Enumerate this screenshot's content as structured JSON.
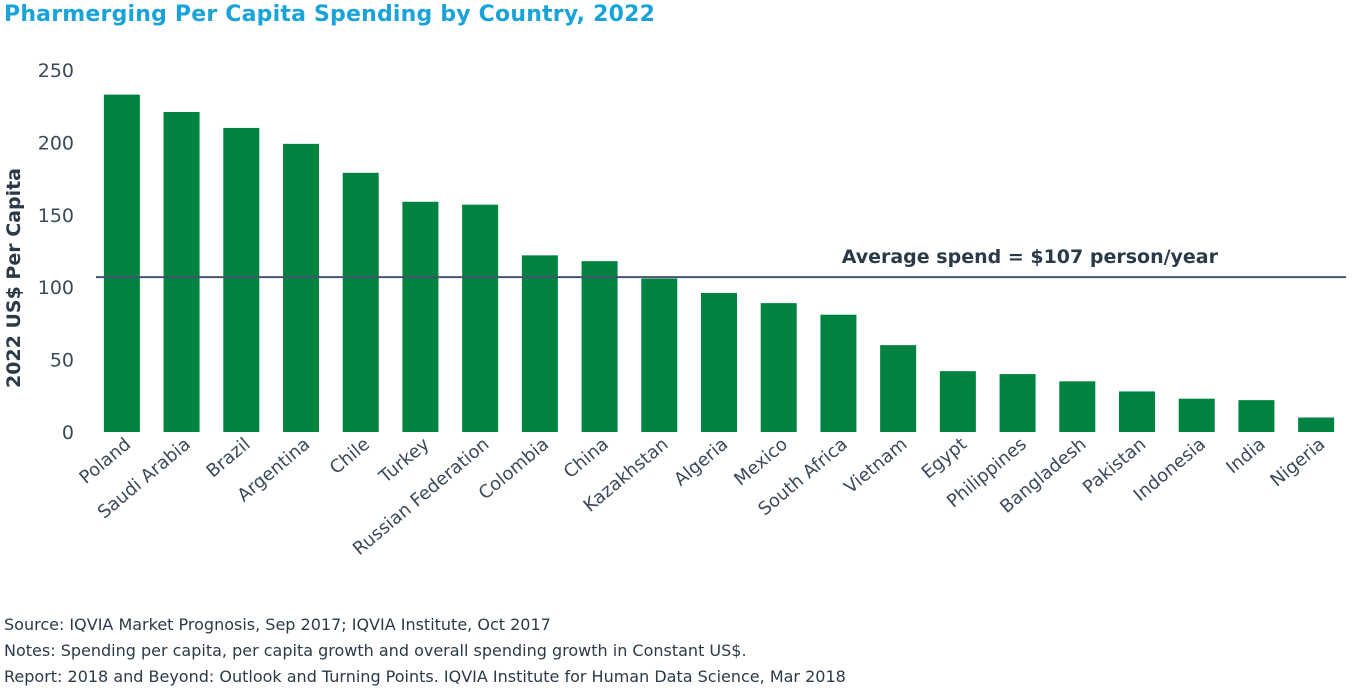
{
  "title": "Pharmerging Per Capita Spending by Country, 2022",
  "chart_data": {
    "type": "bar",
    "title": "Pharmerging Per Capita Spending by Country, 2022",
    "ylabel": "2022 US$ Per Capita",
    "xlabel": "",
    "ylim": [
      0,
      250
    ],
    "yticks": [
      0,
      50,
      100,
      150,
      200,
      250
    ],
    "grid": false,
    "categories": [
      "Poland",
      "Saudi Arabia",
      "Brazil",
      "Argentina",
      "Chile",
      "Turkey",
      "Russian Federation",
      "Colombia",
      "China",
      "Kazakhstan",
      "Algeria",
      "Mexico",
      "South Africa",
      "Vietnam",
      "Egypt",
      "Philippines",
      "Bangladesh",
      "Pakistan",
      "Indonesia",
      "India",
      "Nigeria"
    ],
    "values": [
      233,
      221,
      210,
      199,
      179,
      159,
      157,
      122,
      118,
      106,
      96,
      89,
      81,
      60,
      42,
      40,
      35,
      28,
      23,
      22,
      10
    ],
    "reference_line": {
      "value": 107,
      "label": "Average spend = $107 person/year"
    },
    "colors": {
      "bar": "#008240",
      "reference_line": "#44546a",
      "title": "#1aa3d8",
      "text": "#2b3a49"
    }
  },
  "notes": [
    "Source: IQVIA Market Prognosis, Sep 2017; IQVIA Institute, Oct 2017",
    "Notes: Spending per capita, per capita growth and overall spending growth in Constant US$.",
    "Report: 2018 and Beyond: Outlook and Turning Points. IQVIA Institute for Human Data Science, Mar 2018"
  ]
}
